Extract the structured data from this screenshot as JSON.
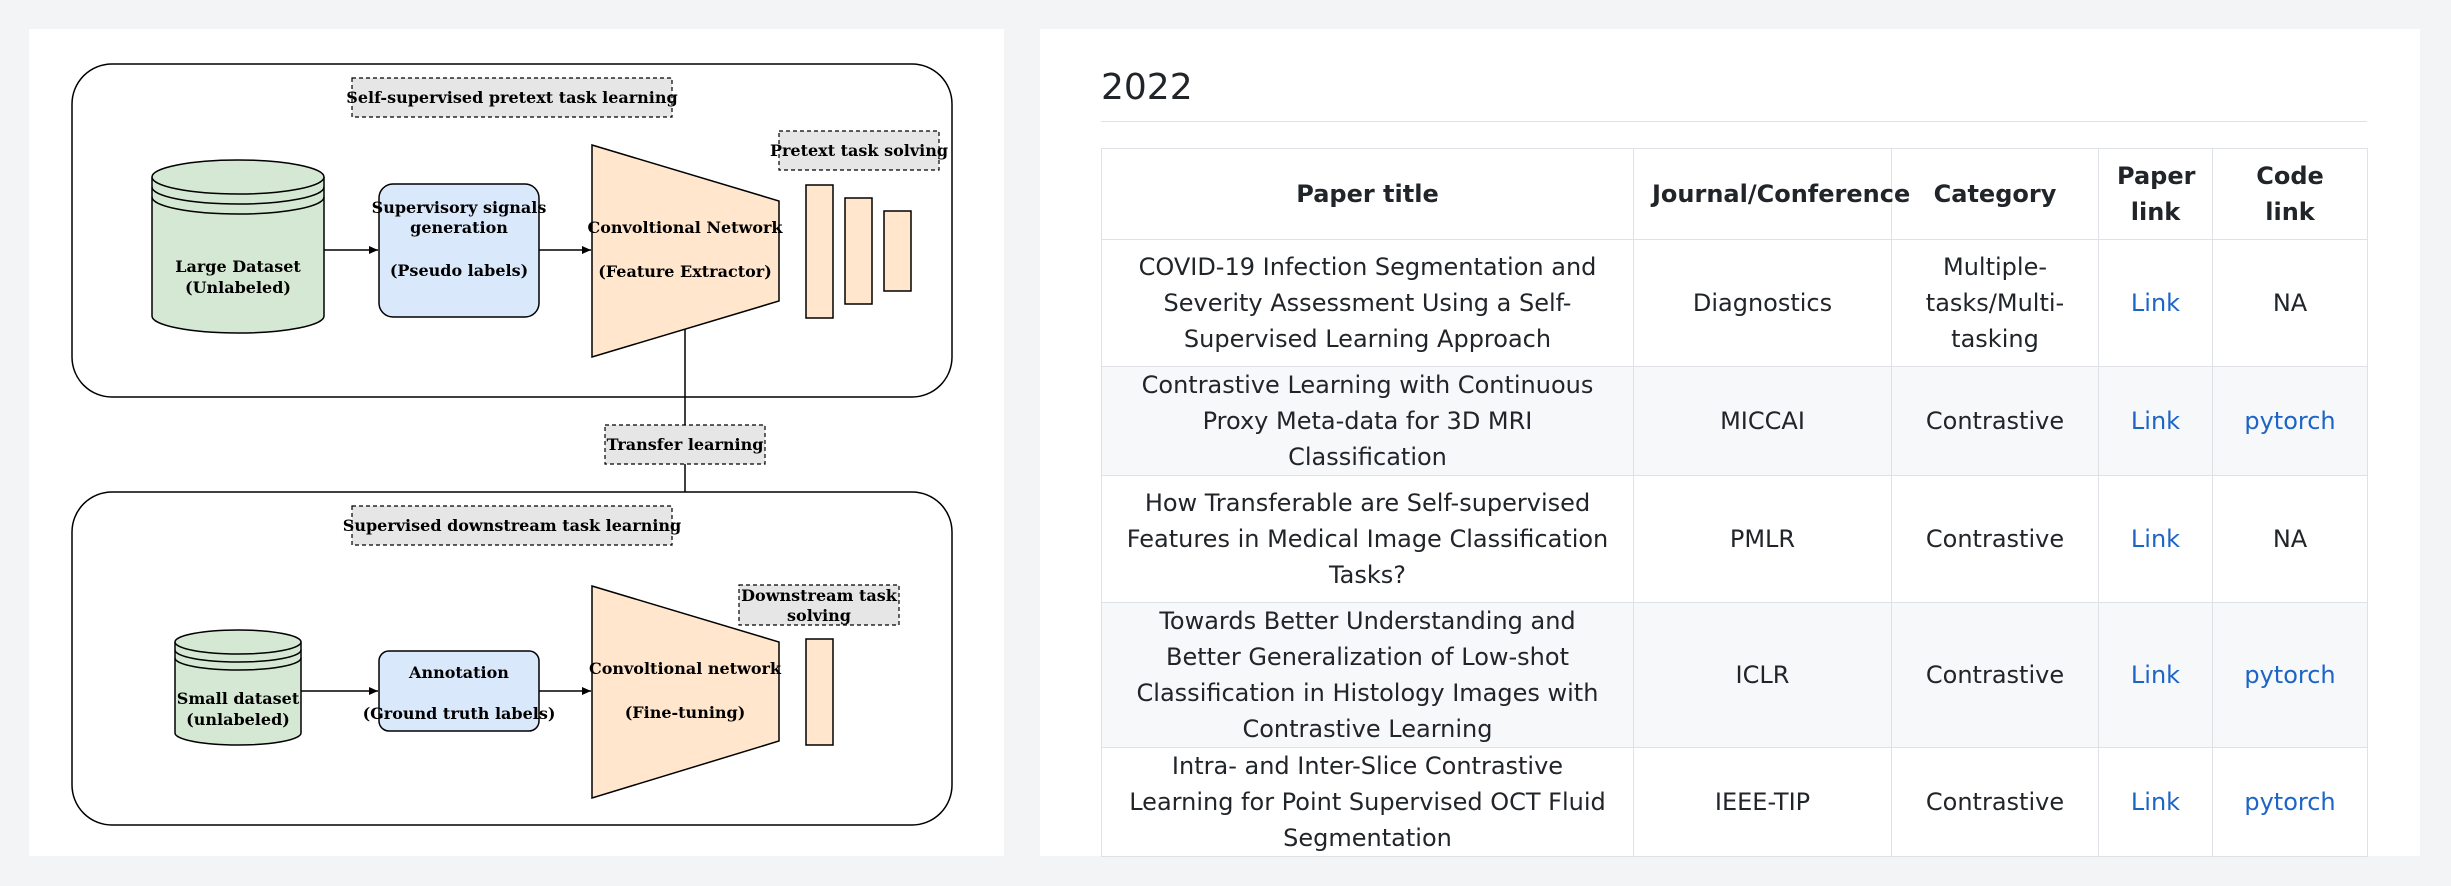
{
  "diagram": {
    "pretext_box_label": "Self-supervised pretext task learning",
    "large_dataset": [
      "Large Dataset",
      "(Unlabeled)"
    ],
    "supervisory": [
      "Supervisory signals",
      "generation",
      "(Pseudo labels)"
    ],
    "conv_network_top": [
      "Convoltional Network",
      "(Feature Extractor)"
    ],
    "pretext_solving": "Pretext task solving",
    "transfer_learning": "Transfer learning",
    "downstream_box_label": "Supervised downstream task learning",
    "small_dataset": [
      "Small dataset",
      "(unlabeled)"
    ],
    "annotation": [
      "Annotation",
      "(Ground truth labels)"
    ],
    "conv_network_bottom": [
      "Convoltional network",
      "(Fine-tuning)"
    ],
    "downstream_solving": [
      "Downstream task",
      "solving"
    ],
    "colors": {
      "dataset_fill": "#d5e8d4",
      "box_fill": "#dae8fc",
      "network_fill": "#ffe6cc",
      "label_fill": "#e6e6e6"
    }
  },
  "table": {
    "year": "2022",
    "headers": [
      "Paper title",
      "Journal/Conference",
      "Category",
      "Paper link",
      "Code link"
    ],
    "rows": [
      {
        "title": "COVID-19 Infection Segmentation and Severity Assessment Using a Self-Supervised Learning Approach",
        "venue": "Diagnostics",
        "category": "Multiple-tasks/Multi-tasking",
        "paper_link": "Link",
        "code_link": "NA"
      },
      {
        "title": "Contrastive Learning with Continuous Proxy Meta-data for 3D MRI Classification",
        "venue": "MICCAI",
        "category": "Contrastive",
        "paper_link": "Link",
        "code_link": "pytorch"
      },
      {
        "title": "How Transferable are Self-supervised Features in Medical Image Classification Tasks?",
        "venue": "PMLR",
        "category": "Contrastive",
        "paper_link": "Link",
        "code_link": "NA"
      },
      {
        "title": "Towards Better Understanding and Better Generalization of Low-shot Classification in Histology Images with Contrastive Learning",
        "venue": "ICLR",
        "category": "Contrastive",
        "paper_link": "Link",
        "code_link": "pytorch"
      },
      {
        "title": "Intra- and Inter-Slice Contrastive Learning for Point Supervised OCT Fluid Segmentation",
        "venue": "IEEE-TIP",
        "category": "Contrastive",
        "paper_link": "Link",
        "code_link": "pytorch"
      }
    ]
  }
}
